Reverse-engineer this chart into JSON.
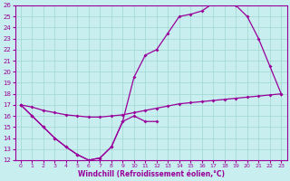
{
  "xlabel": "Windchill (Refroidissement éolien,°C)",
  "bg_color": "#c8eef0",
  "grid_color": "#a0d8d0",
  "line_color": "#990099",
  "xlim": [
    -0.5,
    23.5
  ],
  "ylim": [
    12,
    26
  ],
  "xticks": [
    0,
    1,
    2,
    3,
    4,
    5,
    6,
    7,
    8,
    9,
    10,
    11,
    12,
    13,
    14,
    15,
    16,
    17,
    18,
    19,
    20,
    21,
    22,
    23
  ],
  "yticks": [
    12,
    13,
    14,
    15,
    16,
    17,
    18,
    19,
    20,
    21,
    22,
    23,
    24,
    25,
    26
  ],
  "line_flat_x": [
    0,
    1,
    2,
    3,
    4,
    5,
    6,
    7,
    8,
    9,
    10,
    11,
    12,
    13,
    14,
    15,
    16,
    17,
    18,
    19,
    20,
    21,
    22,
    23
  ],
  "line_flat_y": [
    17.0,
    16.8,
    16.5,
    16.3,
    16.1,
    16.0,
    15.9,
    15.9,
    16.0,
    16.1,
    16.3,
    16.5,
    16.7,
    16.9,
    17.1,
    17.2,
    17.3,
    17.4,
    17.5,
    17.6,
    17.7,
    17.8,
    17.9,
    18.0
  ],
  "line_low_x": [
    0,
    1,
    2,
    3,
    4,
    5,
    6,
    7,
    8,
    9,
    10,
    11,
    12
  ],
  "line_low_y": [
    17.0,
    16.0,
    15.0,
    14.0,
    13.2,
    12.5,
    12.0,
    12.2,
    13.2,
    15.5,
    16.0,
    15.5,
    15.5
  ],
  "line_main_x": [
    0,
    1,
    2,
    3,
    4,
    5,
    6,
    7,
    8,
    9,
    10,
    11,
    12,
    13,
    14,
    15,
    16,
    17,
    18,
    19,
    20,
    21,
    22,
    23
  ],
  "line_main_y": [
    17.0,
    16.0,
    15.0,
    14.0,
    13.2,
    12.5,
    12.0,
    12.2,
    13.2,
    15.5,
    19.5,
    21.5,
    22.0,
    23.5,
    25.0,
    25.2,
    25.5,
    26.2,
    26.3,
    26.0,
    25.0,
    23.0,
    20.5,
    18.0
  ]
}
